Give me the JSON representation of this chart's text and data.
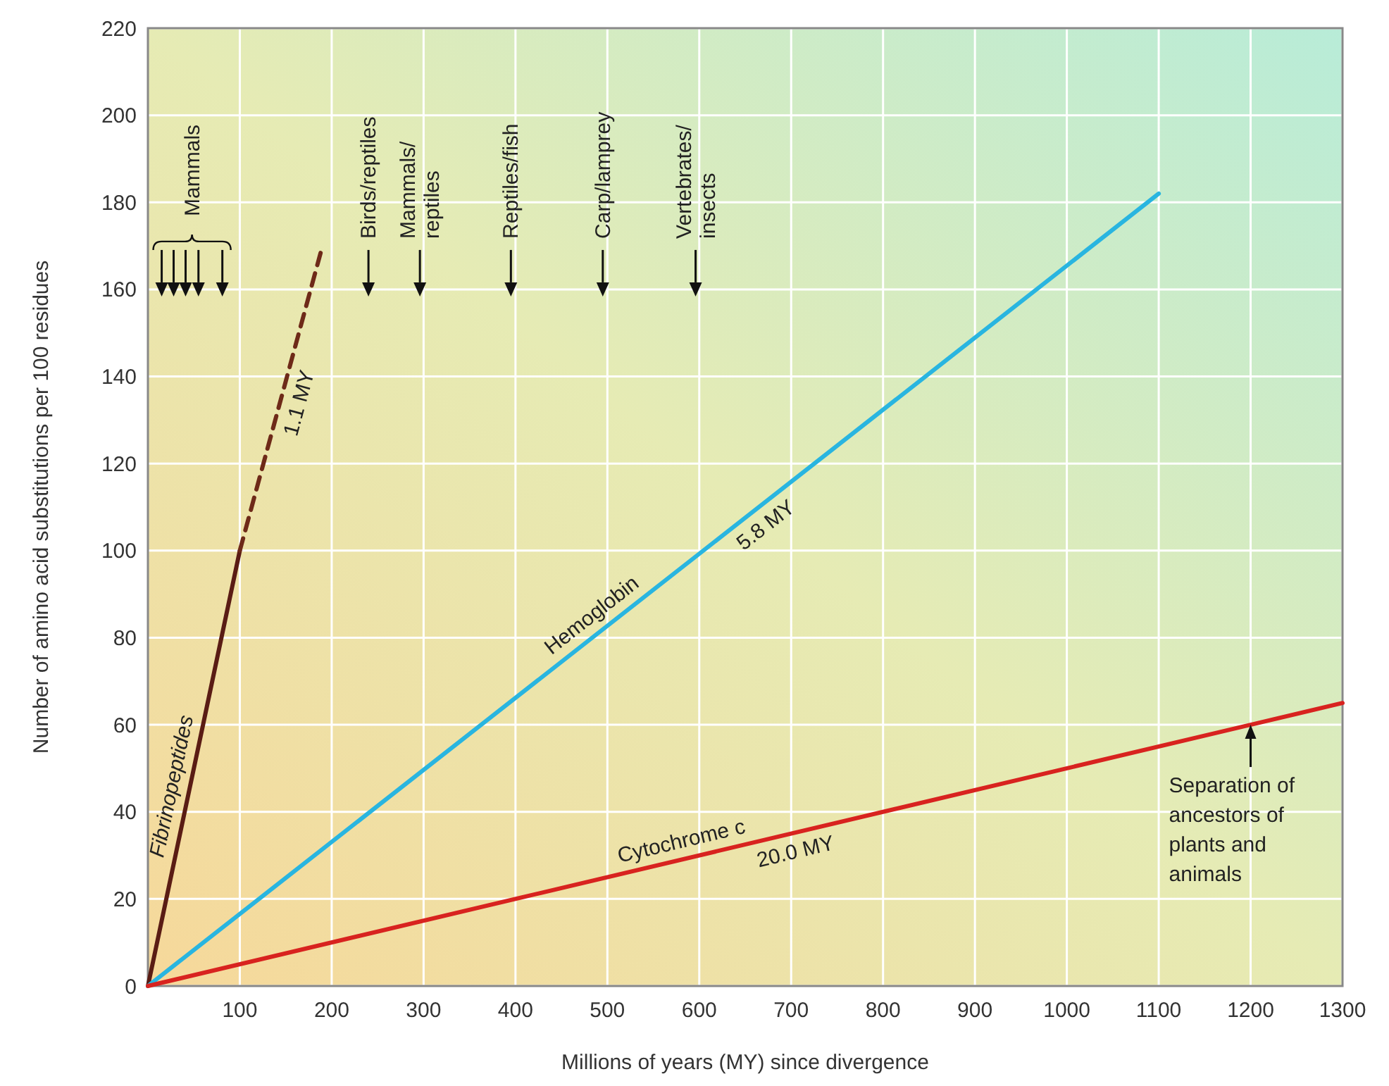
{
  "chart_data": {
    "type": "line",
    "xlabel": "Millions of years (MY) since divergence",
    "ylabel": "Number of amino acid substitutions per 100 residues",
    "xlim": [
      0,
      1300
    ],
    "ylim": [
      0,
      220
    ],
    "xticks": [
      100,
      200,
      300,
      400,
      500,
      600,
      700,
      800,
      900,
      1000,
      1100,
      1200,
      1300
    ],
    "yticks": [
      0,
      20,
      40,
      60,
      80,
      100,
      120,
      140,
      160,
      180,
      200,
      220
    ],
    "grid": true,
    "series": [
      {
        "name": "Fibrinopeptides",
        "color": "#5a1c14",
        "x": [
          0,
          100
        ],
        "values": [
          0,
          100
        ],
        "line_style": "solid"
      },
      {
        "color": "#6e2a18",
        "x": [
          100,
          190
        ],
        "values": [
          100,
          170
        ],
        "line_style": "dashed"
      },
      {
        "name": "Hemoglobin",
        "color": "#29b5e0",
        "x": [
          0,
          1100
        ],
        "values": [
          0,
          182
        ],
        "line_style": "solid"
      },
      {
        "name": "Cytochrome c",
        "color": "#d8231f",
        "x": [
          0,
          1300
        ],
        "values": [
          0,
          65
        ],
        "line_style": "solid"
      },
      {
        "type": "scatter",
        "color": "#111111",
        "marker": "triangle",
        "x": [
          15,
          28,
          41,
          55,
          81,
          240,
          296,
          395,
          495,
          596
        ],
        "values": [
          160,
          160,
          160,
          160,
          160,
          160,
          160,
          160,
          160,
          160
        ]
      }
    ],
    "annotations": [
      "Mammals",
      "Birds/reptiles",
      "Mammals/\nreptiles",
      "Reptiles/fish",
      "Carp/lamprey",
      "Vertebrates/\ninsects",
      {
        "text": "1.1 MY",
        "x": 145,
        "y": 135
      },
      {
        "text": "5.8 MY",
        "x": 660,
        "y": 109.2
      },
      {
        "text": "20.0 MY",
        "x": 700,
        "y": 35
      },
      {
        "text": "Separation of\nancestors of\nplants and\nanimals",
        "x": 1200,
        "y": 60
      }
    ]
  }
}
